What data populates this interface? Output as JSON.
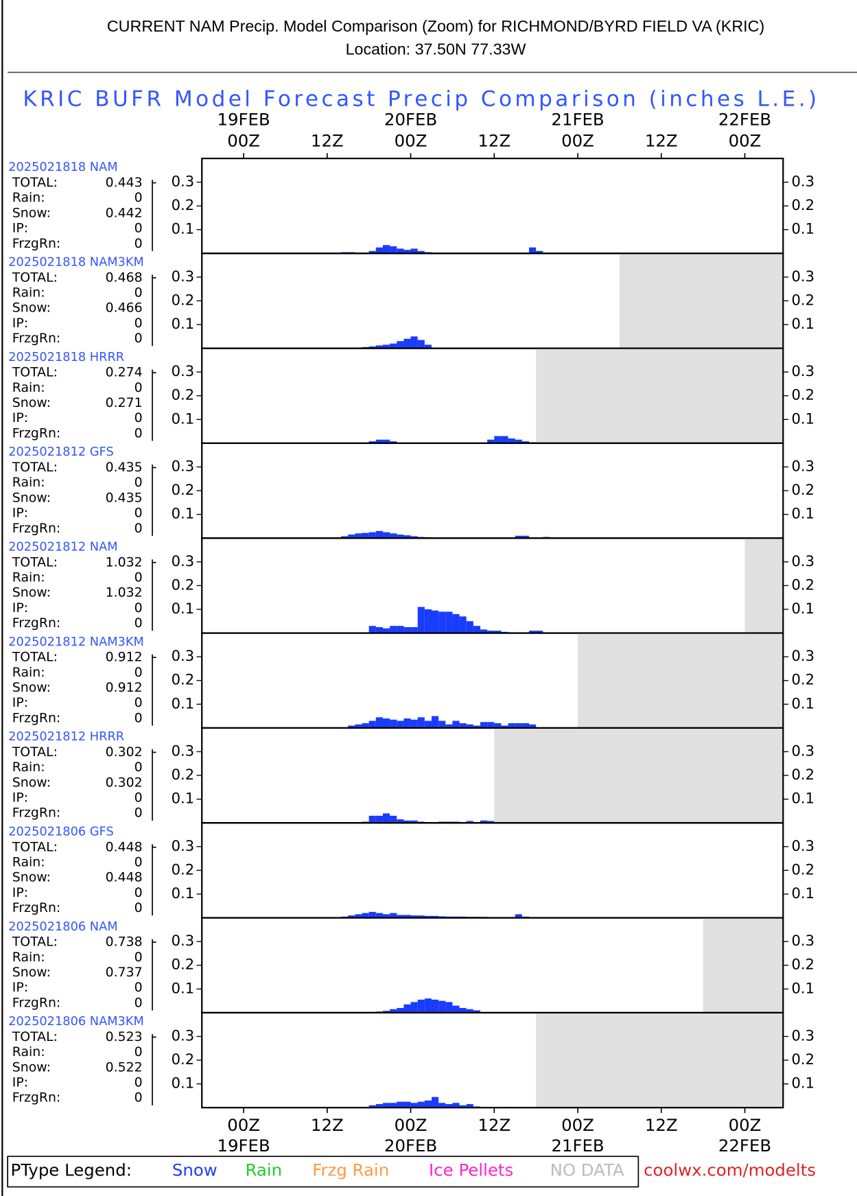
{
  "header": {
    "title": "CURRENT NAM Precip. Model Comparison (Zoom) for RICHMOND/BYRD FIELD VA (KRIC)",
    "subtitle": "Location: 37.50N 77.33W"
  },
  "title": "KRIC BUFR Model Forecast Precip Comparison (inches L.E.)",
  "axes": {
    "xlim": [
      -6,
      77.5
    ],
    "xticks": [
      {
        "value": 0,
        "label": "00Z"
      },
      {
        "value": 12,
        "label": "12Z"
      },
      {
        "value": 24,
        "label": "00Z"
      },
      {
        "value": 36,
        "label": "12Z"
      },
      {
        "value": 48,
        "label": "00Z"
      },
      {
        "value": 60,
        "label": "12Z"
      },
      {
        "value": 72,
        "label": "00Z"
      }
    ],
    "xtick_dates": [
      {
        "value": 0,
        "label": "19FEB"
      },
      {
        "value": 24,
        "label": "20FEB"
      },
      {
        "value": 48,
        "label": "21FEB"
      },
      {
        "value": 72,
        "label": "22FEB"
      }
    ],
    "ylim": [
      0,
      0.4
    ],
    "yticks": [
      0.1,
      0.2,
      0.3
    ]
  },
  "chart_data": [
    {
      "type": "bar",
      "run_label": "2025021818 NAM",
      "color": "#1a3cff",
      "nodata_from": null,
      "stats": [
        {
          "label": "TOTAL:",
          "value": 0.443
        },
        {
          "label": "Rain:",
          "value": 0
        },
        {
          "label": "Snow:",
          "value": 0.442
        },
        {
          "label": "IP:",
          "value": 0
        },
        {
          "label": "FrzgRn:",
          "value": 0
        }
      ],
      "x": [
        14,
        15,
        18,
        19,
        20,
        21,
        22,
        23,
        24,
        25,
        26,
        29,
        30,
        41,
        42
      ],
      "values": [
        0.005,
        0.005,
        0.01,
        0.025,
        0.035,
        0.03,
        0.02,
        0.015,
        0.02,
        0.01,
        0.005,
        0.003,
        0.003,
        0.025,
        0.01
      ]
    },
    {
      "type": "bar",
      "run_label": "2025021818 NAM3KM",
      "color": "#1a3cff",
      "nodata_from": 54,
      "stats": [
        {
          "label": "TOTAL:",
          "value": 0.468
        },
        {
          "label": "Rain:",
          "value": 0
        },
        {
          "label": "Snow:",
          "value": 0.466
        },
        {
          "label": "IP:",
          "value": 0
        },
        {
          "label": "FrzgRn:",
          "value": 0
        }
      ],
      "x": [
        17,
        18,
        19,
        20,
        21,
        22,
        23,
        24,
        25,
        26
      ],
      "values": [
        0.005,
        0.008,
        0.012,
        0.015,
        0.02,
        0.03,
        0.04,
        0.05,
        0.035,
        0.015
      ]
    },
    {
      "type": "bar",
      "run_label": "2025021818 HRRR",
      "color": "#1a3cff",
      "nodata_from": 42,
      "stats": [
        {
          "label": "TOTAL:",
          "value": 0.274
        },
        {
          "label": "Rain:",
          "value": 0
        },
        {
          "label": "Snow:",
          "value": 0.271
        },
        {
          "label": "IP:",
          "value": 0
        },
        {
          "label": "FrzgRn:",
          "value": 0
        }
      ],
      "x": [
        18,
        19,
        20,
        21,
        35,
        36,
        37,
        38,
        39,
        40,
        41
      ],
      "values": [
        0.008,
        0.015,
        0.015,
        0.008,
        0.015,
        0.03,
        0.03,
        0.02,
        0.015,
        0.008,
        0.004
      ]
    },
    {
      "type": "bar",
      "run_label": "2025021812 GFS",
      "color": "#1a3cff",
      "nodata_from": null,
      "stats": [
        {
          "label": "TOTAL:",
          "value": 0.435
        },
        {
          "label": "Rain:",
          "value": 0
        },
        {
          "label": "Snow:",
          "value": 0.435
        },
        {
          "label": "IP:",
          "value": 0
        },
        {
          "label": "FrzgRn:",
          "value": 0
        }
      ],
      "x": [
        14,
        15,
        16,
        17,
        18,
        19,
        20,
        21,
        22,
        23,
        24,
        25,
        26,
        39,
        40,
        43
      ],
      "values": [
        0.008,
        0.015,
        0.02,
        0.022,
        0.025,
        0.03,
        0.025,
        0.02,
        0.015,
        0.012,
        0.008,
        0.005,
        0.004,
        0.01,
        0.01,
        0.005
      ]
    },
    {
      "type": "bar",
      "run_label": "2025021812 NAM",
      "color": "#1a3cff",
      "nodata_from": 72,
      "stats": [
        {
          "label": "TOTAL:",
          "value": 1.032
        },
        {
          "label": "Rain:",
          "value": 0
        },
        {
          "label": "Snow:",
          "value": 1.032
        },
        {
          "label": "IP:",
          "value": 0
        },
        {
          "label": "FrzgRn:",
          "value": 0
        }
      ],
      "x": [
        18,
        19,
        20,
        21,
        22,
        23,
        24,
        25,
        26,
        27,
        28,
        29,
        30,
        31,
        32,
        33,
        34,
        35,
        36,
        37,
        41,
        42
      ],
      "values": [
        0.03,
        0.025,
        0.02,
        0.03,
        0.03,
        0.025,
        0.025,
        0.11,
        0.1,
        0.095,
        0.09,
        0.09,
        0.08,
        0.07,
        0.05,
        0.03,
        0.015,
        0.01,
        0.01,
        0.005,
        0.01,
        0.01
      ]
    },
    {
      "type": "bar",
      "run_label": "2025021812 NAM3KM",
      "color": "#1a3cff",
      "nodata_from": 48,
      "stats": [
        {
          "label": "TOTAL:",
          "value": 0.912
        },
        {
          "label": "Rain:",
          "value": 0
        },
        {
          "label": "Snow:",
          "value": 0.912
        },
        {
          "label": "IP:",
          "value": 0
        },
        {
          "label": "FrzgRn:",
          "value": 0
        }
      ],
      "x": [
        15,
        16,
        17,
        18,
        19,
        20,
        21,
        22,
        23,
        24,
        25,
        26,
        27,
        28,
        29,
        30,
        31,
        32,
        33,
        34,
        35,
        36,
        37,
        38,
        39,
        40,
        41
      ],
      "values": [
        0.01,
        0.015,
        0.02,
        0.03,
        0.045,
        0.04,
        0.035,
        0.03,
        0.04,
        0.035,
        0.045,
        0.03,
        0.05,
        0.03,
        0.015,
        0.03,
        0.02,
        0.015,
        0.01,
        0.025,
        0.025,
        0.02,
        0.01,
        0.02,
        0.02,
        0.02,
        0.015
      ]
    },
    {
      "type": "bar",
      "run_label": "2025021812 HRRR",
      "color": "#1a3cff",
      "nodata_from": 36,
      "stats": [
        {
          "label": "TOTAL:",
          "value": 0.302
        },
        {
          "label": "Rain:",
          "value": 0
        },
        {
          "label": "Snow:",
          "value": 0.302
        },
        {
          "label": "IP:",
          "value": 0
        },
        {
          "label": "FrzgRn:",
          "value": 0
        }
      ],
      "x": [
        15,
        16,
        17,
        18,
        19,
        20,
        21,
        22,
        23,
        24,
        25,
        28,
        29,
        30,
        32,
        34,
        35
      ],
      "values": [
        0.003,
        0.003,
        0.005,
        0.03,
        0.03,
        0.04,
        0.03,
        0.015,
        0.01,
        0.01,
        0.005,
        0.005,
        0.005,
        0.005,
        0.008,
        0.01,
        0.008
      ]
    },
    {
      "type": "bar",
      "run_label": "2025021806 GFS",
      "color": "#1a3cff",
      "nodata_from": null,
      "stats": [
        {
          "label": "TOTAL:",
          "value": 0.448
        },
        {
          "label": "Rain:",
          "value": 0
        },
        {
          "label": "Snow:",
          "value": 0.448
        },
        {
          "label": "IP:",
          "value": 0
        },
        {
          "label": "FrzgRn:",
          "value": 0
        }
      ],
      "x": [
        14,
        15,
        16,
        17,
        18,
        19,
        20,
        21,
        22,
        23,
        24,
        25,
        26,
        27,
        28,
        29,
        30,
        31,
        32,
        33,
        34,
        39,
        40
      ],
      "values": [
        0.005,
        0.01,
        0.015,
        0.02,
        0.025,
        0.02,
        0.015,
        0.02,
        0.012,
        0.012,
        0.01,
        0.01,
        0.008,
        0.008,
        0.006,
        0.005,
        0.005,
        0.005,
        0.004,
        0.004,
        0.004,
        0.015,
        0.005
      ]
    },
    {
      "type": "bar",
      "run_label": "2025021806 NAM",
      "color": "#1a3cff",
      "nodata_from": 66,
      "stats": [
        {
          "label": "TOTAL:",
          "value": 0.738
        },
        {
          "label": "Rain:",
          "value": 0
        },
        {
          "label": "Snow:",
          "value": 0.737
        },
        {
          "label": "IP:",
          "value": 0
        },
        {
          "label": "FrzgRn:",
          "value": 0
        }
      ],
      "x": [
        18,
        19,
        20,
        21,
        22,
        23,
        24,
        25,
        26,
        27,
        28,
        29,
        30,
        31,
        32,
        33
      ],
      "values": [
        0.002,
        0.005,
        0.008,
        0.015,
        0.02,
        0.035,
        0.045,
        0.055,
        0.06,
        0.055,
        0.05,
        0.045,
        0.03,
        0.02,
        0.015,
        0.01
      ]
    },
    {
      "type": "bar",
      "run_label": "2025021806 NAM3KM",
      "color": "#1a3cff",
      "nodata_from": 42,
      "stats": [
        {
          "label": "TOTAL:",
          "value": 0.523
        },
        {
          "label": "Rain:",
          "value": 0
        },
        {
          "label": "Snow:",
          "value": 0.522
        },
        {
          "label": "IP:",
          "value": 0
        },
        {
          "label": "FrzgRn:",
          "value": 0
        }
      ],
      "x": [
        18,
        19,
        20,
        21,
        22,
        23,
        24,
        25,
        26,
        27,
        28,
        29,
        30,
        31,
        32,
        33,
        37
      ],
      "values": [
        0.01,
        0.015,
        0.02,
        0.02,
        0.025,
        0.025,
        0.02,
        0.025,
        0.03,
        0.045,
        0.02,
        0.015,
        0.02,
        0.01,
        0.015,
        0.005,
        0.003
      ]
    }
  ],
  "legend": {
    "title": "PType Legend:",
    "items": [
      {
        "label": "Snow",
        "color": "#1a3cff"
      },
      {
        "label": "Rain",
        "color": "#22cc22"
      },
      {
        "label": "Frzg Rain",
        "color": "#ff9944"
      },
      {
        "label": "Ice Pellets",
        "color": "#ff22cc"
      },
      {
        "label": "NO DATA",
        "color": "#bbbbbb"
      }
    ]
  },
  "credit": "coolwx.com/modelts"
}
